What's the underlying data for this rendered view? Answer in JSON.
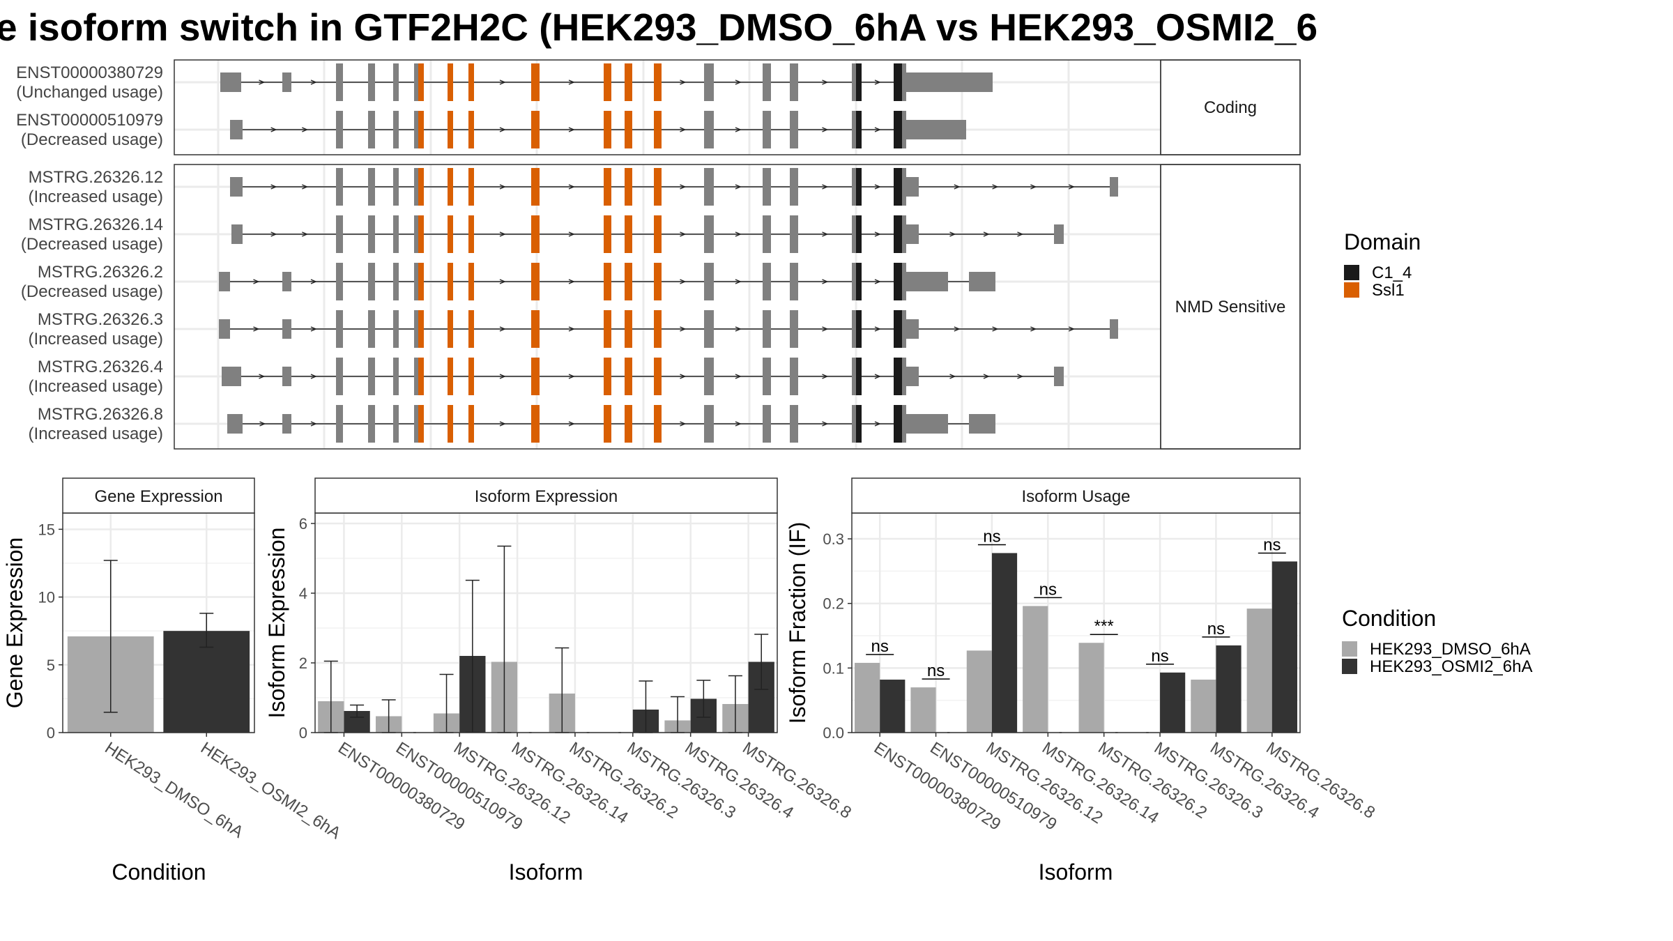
{
  "title": "e isoform switch in GTF2H2C (HEK293_DMSO_6hA vs HEK293_OSMI2_6",
  "colors": {
    "domain_C1_4": "#1a1a1a",
    "domain_Ssl1": "#d95f02",
    "exon_default": "#808080",
    "condition_DMSO": "#a9a9a9",
    "condition_OSMI2": "#333333"
  },
  "transcript_panels": [
    {
      "strip": "Coding",
      "transcripts": [
        {
          "id": "ENST00000380729",
          "status": "(Unchanged usage)"
        },
        {
          "id": "ENST00000510979",
          "status": "(Decreased usage)"
        }
      ]
    },
    {
      "strip": "NMD Sensitive",
      "transcripts": [
        {
          "id": "MSTRG.26326.12",
          "status": "(Increased usage)"
        },
        {
          "id": "MSTRG.26326.14",
          "status": "(Decreased usage)"
        },
        {
          "id": "MSTRG.26326.2",
          "status": "(Decreased usage)"
        },
        {
          "id": "MSTRG.26326.3",
          "status": "(Increased usage)"
        },
        {
          "id": "MSTRG.26326.4",
          "status": "(Increased usage)"
        },
        {
          "id": "MSTRG.26326.8",
          "status": "(Increased usage)"
        }
      ]
    }
  ],
  "domain_legend": {
    "title": "Domain",
    "items": [
      {
        "label": "C1_4",
        "color_key": "domain_C1_4"
      },
      {
        "label": "Ssl1",
        "color_key": "domain_Ssl1"
      }
    ]
  },
  "condition_legend": {
    "title": "Condition",
    "items": [
      {
        "label": "HEK293_DMSO_6hA",
        "color_key": "condition_DMSO"
      },
      {
        "label": "HEK293_OSMI2_6hA",
        "color_key": "condition_OSMI2"
      }
    ]
  },
  "chart_data": [
    {
      "type": "bar",
      "title": "Gene Expression",
      "xlabel": "Condition",
      "ylabel": "Gene Expression",
      "ylim": [
        0,
        16.2
      ],
      "yticks": [
        0,
        5,
        10,
        15
      ],
      "categories": [
        "HEK293_DMSO_6hA",
        "HEK293_OSMI2_6hA"
      ],
      "values": [
        7.1,
        7.5
      ],
      "error_low": [
        1.5,
        6.3
      ],
      "error_high": [
        12.7,
        8.8
      ]
    },
    {
      "type": "bar",
      "title": "Isoform Expression",
      "xlabel": "Isoform",
      "ylabel": "Isoform Expression",
      "ylim": [
        0,
        6.3
      ],
      "yticks": [
        0,
        2,
        4,
        6
      ],
      "categories": [
        "ENST00000380729",
        "ENST00000510979",
        "MSTRG.26326.12",
        "MSTRG.26326.14",
        "MSTRG.26326.2",
        "MSTRG.26326.3",
        "MSTRG.26326.4",
        "MSTRG.26326.8"
      ],
      "series": [
        {
          "name": "HEK293_DMSO_6hA",
          "values": [
            0.9,
            0.47,
            0.55,
            2.03,
            1.12,
            0.0,
            0.35,
            0.82
          ],
          "error_low": [
            0,
            0,
            0,
            0,
            0,
            0,
            0,
            0
          ],
          "error_high": [
            2.05,
            0.94,
            1.67,
            5.35,
            2.43,
            0,
            1.03,
            1.63
          ]
        },
        {
          "name": "HEK293_OSMI2_6hA",
          "values": [
            0.62,
            0.0,
            2.2,
            0.0,
            0.0,
            0.66,
            0.97,
            2.03
          ],
          "error_low": [
            0.44,
            0,
            0.01,
            0,
            0,
            0,
            0.44,
            1.24
          ],
          "error_high": [
            0.79,
            0,
            4.37,
            0,
            0,
            1.48,
            1.5,
            2.82
          ]
        }
      ]
    },
    {
      "type": "bar",
      "title": "Isoform Usage",
      "xlabel": "Isoform",
      "ylabel": "Isoform Fraction (IF)",
      "ylim": [
        0,
        0.34
      ],
      "yticks": [
        "0.0",
        "0.1",
        "0.2",
        "0.3"
      ],
      "categories": [
        "ENST00000380729",
        "ENST00000510979",
        "MSTRG.26326.12",
        "MSTRG.26326.14",
        "MSTRG.26326.2",
        "MSTRG.26326.3",
        "MSTRG.26326.4",
        "MSTRG.26326.8"
      ],
      "series": [
        {
          "name": "HEK293_DMSO_6hA",
          "values": [
            0.108,
            0.07,
            0.127,
            0.196,
            0.139,
            0.0,
            0.082,
            0.192
          ]
        },
        {
          "name": "HEK293_OSMI2_6hA",
          "values": [
            0.082,
            0.0,
            0.278,
            0.0,
            0.0,
            0.093,
            0.135,
            0.265
          ]
        }
      ],
      "significance": [
        "ns",
        "ns",
        "ns",
        "ns",
        "***",
        "ns",
        "ns",
        "ns"
      ]
    }
  ]
}
